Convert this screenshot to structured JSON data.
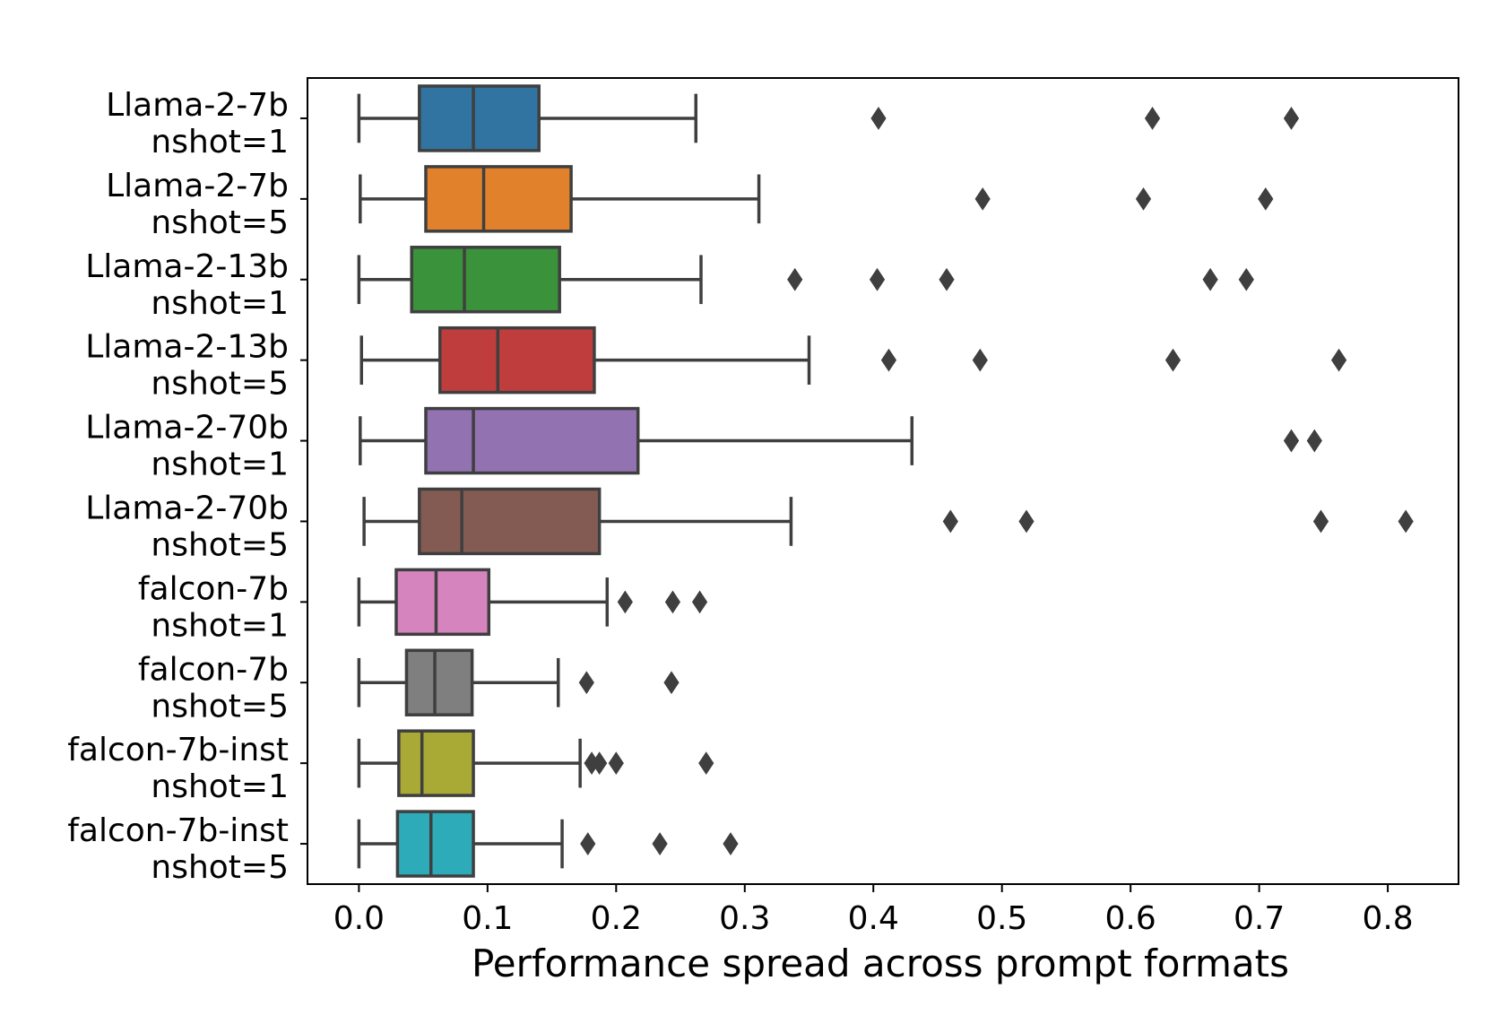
{
  "chart_data": {
    "type": "box",
    "title": "",
    "xlabel": "Performance spread across prompt formats",
    "ylabel": "",
    "xlim": [
      -0.04,
      0.855
    ],
    "xticks": [
      0.0,
      0.1,
      0.2,
      0.3,
      0.4,
      0.5,
      0.6,
      0.7,
      0.8
    ],
    "xtick_labels": [
      "0.0",
      "0.1",
      "0.2",
      "0.3",
      "0.4",
      "0.5",
      "0.6",
      "0.7",
      "0.8"
    ],
    "orientation": "horizontal",
    "grid": false,
    "legend": "none",
    "series": [
      {
        "label_line1": "Llama-2-7b",
        "label_line2": "nshot=1",
        "color": "#3274a1",
        "whisker_low": 0.0,
        "q1": 0.047,
        "median": 0.089,
        "q3": 0.14,
        "whisker_high": 0.262,
        "outliers": [
          0.404,
          0.617,
          0.725
        ]
      },
      {
        "label_line1": "Llama-2-7b",
        "label_line2": "nshot=5",
        "color": "#e1812c",
        "whisker_low": 0.001,
        "q1": 0.052,
        "median": 0.097,
        "q3": 0.165,
        "whisker_high": 0.311,
        "outliers": [
          0.485,
          0.61,
          0.705
        ]
      },
      {
        "label_line1": "Llama-2-13b",
        "label_line2": "nshot=1",
        "color": "#3a923a",
        "whisker_low": 0.0,
        "q1": 0.041,
        "median": 0.082,
        "q3": 0.156,
        "whisker_high": 0.266,
        "outliers": [
          0.339,
          0.403,
          0.457,
          0.662,
          0.69
        ]
      },
      {
        "label_line1": "Llama-2-13b",
        "label_line2": "nshot=5",
        "color": "#c03d3e",
        "whisker_low": 0.002,
        "q1": 0.063,
        "median": 0.108,
        "q3": 0.183,
        "whisker_high": 0.35,
        "outliers": [
          0.412,
          0.483,
          0.633,
          0.762
        ]
      },
      {
        "label_line1": "Llama-2-70b",
        "label_line2": "nshot=1",
        "color": "#9372b2",
        "whisker_low": 0.001,
        "q1": 0.052,
        "median": 0.089,
        "q3": 0.217,
        "whisker_high": 0.43,
        "outliers": [
          0.725,
          0.743
        ]
      },
      {
        "label_line1": "Llama-2-70b",
        "label_line2": "nshot=5",
        "color": "#845b53",
        "whisker_low": 0.004,
        "q1": 0.047,
        "median": 0.08,
        "q3": 0.187,
        "whisker_high": 0.336,
        "outliers": [
          0.46,
          0.519,
          0.748,
          0.814
        ]
      },
      {
        "label_line1": "falcon-7b",
        "label_line2": "nshot=1",
        "color": "#d684bd",
        "whisker_low": 0.0,
        "q1": 0.029,
        "median": 0.06,
        "q3": 0.101,
        "whisker_high": 0.193,
        "outliers": [
          0.207,
          0.244,
          0.265
        ]
      },
      {
        "label_line1": "falcon-7b",
        "label_line2": "nshot=5",
        "color": "#7f7f7f",
        "whisker_low": 0.0,
        "q1": 0.037,
        "median": 0.059,
        "q3": 0.088,
        "whisker_high": 0.155,
        "outliers": [
          0.177,
          0.243
        ]
      },
      {
        "label_line1": "falcon-7b-inst",
        "label_line2": "nshot=1",
        "color": "#a9aa35",
        "whisker_low": 0.0,
        "q1": 0.031,
        "median": 0.049,
        "q3": 0.089,
        "whisker_high": 0.172,
        "outliers": [
          0.181,
          0.187,
          0.2,
          0.27
        ]
      },
      {
        "label_line1": "falcon-7b-inst",
        "label_line2": "nshot=5",
        "color": "#2eabb8",
        "whisker_low": 0.0,
        "q1": 0.03,
        "median": 0.056,
        "q3": 0.089,
        "whisker_high": 0.158,
        "outliers": [
          0.178,
          0.234,
          0.289
        ]
      }
    ]
  }
}
